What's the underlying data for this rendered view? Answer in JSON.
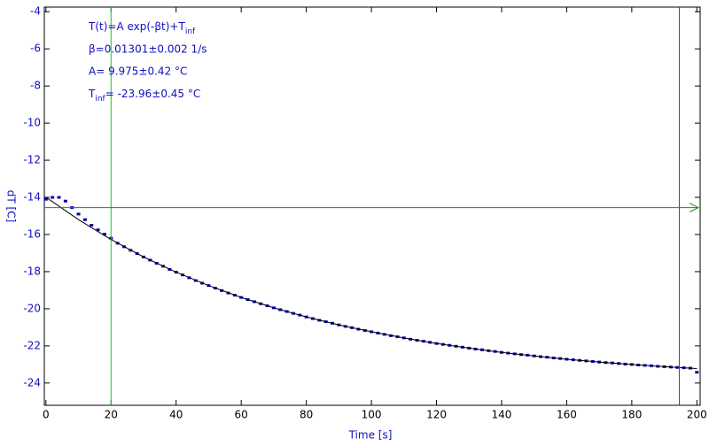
{
  "chart_data": {
    "type": "scatter",
    "x_label": "Time [s]",
    "y_label": "dT [C]",
    "xlim": [
      -0.5,
      201
    ],
    "ylim": [
      -25.2,
      -3.75
    ],
    "xticks": [
      0,
      20,
      40,
      60,
      80,
      100,
      120,
      140,
      160,
      180,
      200
    ],
    "yticks": [
      -4,
      -6,
      -8,
      -10,
      -12,
      -14,
      -16,
      -18,
      -20,
      -22,
      -24
    ],
    "annotations": [
      [
        {
          "text": "T(t)=A exp(-βt)+T"
        },
        {
          "text": "inf",
          "sub": true
        }
      ],
      [
        {
          "text": "β=0.01301±0.002 1/s"
        }
      ],
      [
        {
          "text": "A= 9.975±0.42 °C"
        }
      ],
      [
        {
          "text": "T"
        },
        {
          "text": "inf",
          "sub": true
        },
        {
          "text": "= -23.96±0.45 °C"
        }
      ]
    ],
    "cursors": [
      {
        "axis": "x",
        "value": 20,
        "color": "#20c020"
      },
      {
        "axis": "x",
        "value": 194.6,
        "color": "#c02020"
      },
      {
        "axis": "y",
        "value": -14.55,
        "color": "#109010"
      }
    ],
    "x": [
      0,
      2,
      4,
      6,
      8,
      10,
      12,
      14,
      16,
      18,
      20,
      22,
      24,
      26,
      28,
      30,
      32,
      34,
      36,
      38,
      40,
      42,
      44,
      46,
      48,
      50,
      52,
      54,
      56,
      58,
      60,
      62,
      64,
      66,
      68,
      70,
      72,
      74,
      76,
      78,
      80,
      82,
      84,
      86,
      88,
      90,
      92,
      94,
      96,
      98,
      100,
      102,
      104,
      106,
      108,
      110,
      112,
      114,
      116,
      118,
      120,
      122,
      124,
      126,
      128,
      130,
      132,
      134,
      136,
      138,
      140,
      142,
      144,
      146,
      148,
      150,
      152,
      154,
      156,
      158,
      160,
      162,
      164,
      166,
      168,
      170,
      172,
      174,
      176,
      178,
      180,
      182,
      184,
      186,
      188,
      190,
      192,
      194,
      196,
      198,
      200
    ],
    "series": [
      {
        "color": "#0000b0",
        "marker": "square",
        "values": [
          -14.1,
          -14.0,
          -14.0,
          -14.2,
          -14.55,
          -14.9,
          -15.2,
          -15.5,
          -15.75,
          -15.98,
          -16.2,
          -16.47,
          -16.66,
          -16.85,
          -17.03,
          -17.21,
          -17.38,
          -17.55,
          -17.71,
          -17.88,
          -18.03,
          -18.18,
          -18.33,
          -18.48,
          -18.62,
          -18.75,
          -18.89,
          -19.02,
          -19.15,
          -19.27,
          -19.39,
          -19.51,
          -19.62,
          -19.73,
          -19.84,
          -19.95,
          -20.05,
          -20.15,
          -20.25,
          -20.34,
          -20.44,
          -20.53,
          -20.62,
          -20.7,
          -20.78,
          -20.87,
          -20.95,
          -21.02,
          -21.1,
          -21.17,
          -21.24,
          -21.31,
          -21.38,
          -21.45,
          -21.51,
          -21.57,
          -21.64,
          -21.7,
          -21.75,
          -21.81,
          -21.87,
          -21.92,
          -21.97,
          -22.02,
          -22.07,
          -22.12,
          -22.17,
          -22.21,
          -22.26,
          -22.3,
          -22.35,
          -22.39,
          -22.43,
          -22.47,
          -22.5,
          -22.54,
          -22.58,
          -22.61,
          -22.65,
          -22.68,
          -22.72,
          -22.75,
          -22.78,
          -22.81,
          -22.84,
          -22.87,
          -22.9,
          -22.92,
          -22.95,
          -22.98,
          -23.0,
          -23.03,
          -23.05,
          -23.07,
          -23.1,
          -23.12,
          -23.14,
          -23.16,
          -23.18,
          -23.2,
          -23.42
        ]
      },
      {
        "color": "#000000",
        "x": [
          0,
          10,
          20,
          30,
          40,
          50,
          60,
          70,
          80,
          90,
          100,
          110,
          120,
          130,
          140,
          150,
          160,
          170,
          180,
          190,
          200
        ],
        "values": [
          -13.99,
          -15.2,
          -16.27,
          -17.21,
          -18.03,
          -18.75,
          -19.39,
          -19.95,
          -20.44,
          -20.87,
          -21.24,
          -21.57,
          -21.87,
          -22.12,
          -22.35,
          -22.54,
          -22.72,
          -22.87,
          -23.0,
          -23.12,
          -23.22
        ]
      }
    ]
  }
}
